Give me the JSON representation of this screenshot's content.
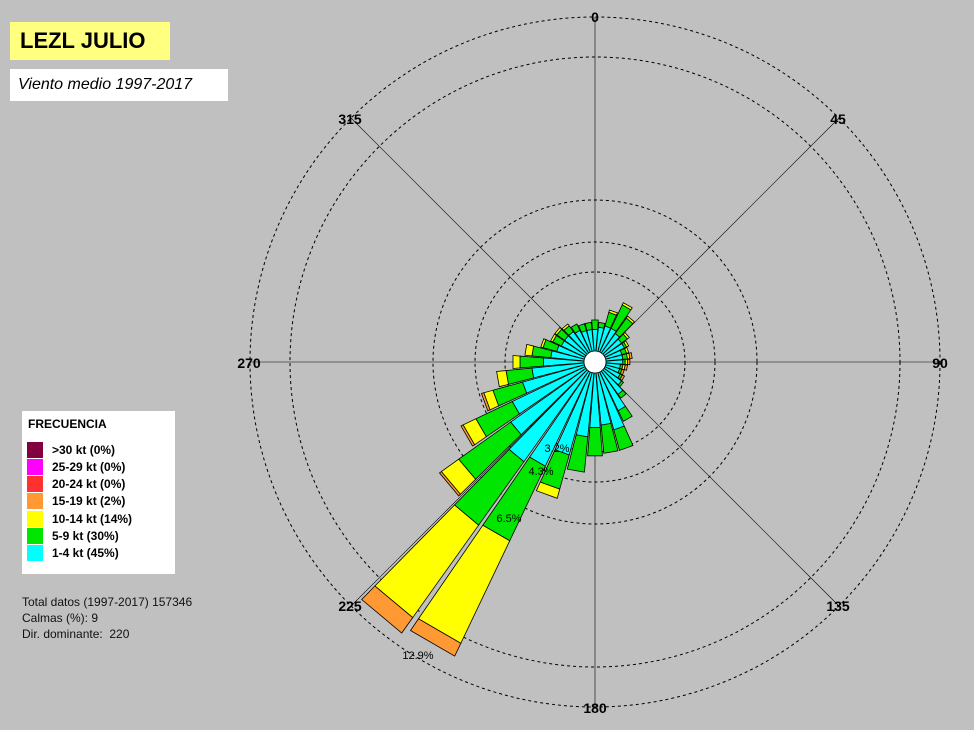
{
  "title": "LEZL JULIO",
  "subtitle": "Viento medio 1997-2017",
  "legend": {
    "title": "FRECUENCIA",
    "items": [
      {
        "label": ">30 kt (0%)",
        "color": "#800040"
      },
      {
        "label": "25-29 kt (0%)",
        "color": "#ff00ff"
      },
      {
        "label": "20-24 kt (0%)",
        "color": "#ff3030"
      },
      {
        "label": "15-19 kt (2%)",
        "color": "#ff9933"
      },
      {
        "label": "10-14 kt (14%)",
        "color": "#ffff00"
      },
      {
        "label": "5-9 kt (30%)",
        "color": "#00e600"
      },
      {
        "label": "1-4 kt (45%)",
        "color": "#00ffff"
      }
    ]
  },
  "info": {
    "total": "Total datos (1997-2017) 157346",
    "calmas": "Calmas (%): 9",
    "dominante": "Dir. dominante:  220"
  },
  "chart_data": {
    "type": "wind-rose",
    "direction_labels": [
      "0",
      "45",
      "90",
      "135",
      "180",
      "225",
      "270",
      "315"
    ],
    "ring_labels": [
      "3.2%",
      "4.3%",
      "6.5%",
      "12.9%"
    ],
    "ring_values": [
      3.2,
      4.3,
      6.5,
      12.9,
      19.3
    ],
    "speed_bins": [
      "1-4 kt",
      "5-9 kt",
      "10-14 kt",
      "15-19 kt"
    ],
    "sectors": [
      {
        "dir": 0,
        "cumulative": [
          1.0,
          1.4,
          1.4,
          1.4
        ]
      },
      {
        "dir": 10,
        "cumulative": [
          1.1,
          1.3,
          1.3,
          1.3
        ]
      },
      {
        "dir": 20,
        "cumulative": [
          1.2,
          1.8,
          1.9,
          1.9
        ]
      },
      {
        "dir": 30,
        "cumulative": [
          1.2,
          2.3,
          2.4,
          2.4
        ]
      },
      {
        "dir": 40,
        "cumulative": [
          1.1,
          1.9,
          2.0,
          2.0
        ]
      },
      {
        "dir": 50,
        "cumulative": [
          1.0,
          1.3,
          1.4,
          1.4
        ]
      },
      {
        "dir": 60,
        "cumulative": [
          1.0,
          1.1,
          1.2,
          1.2
        ]
      },
      {
        "dir": 70,
        "cumulative": [
          0.8,
          1.0,
          1.1,
          1.1
        ]
      },
      {
        "dir": 80,
        "cumulative": [
          0.8,
          1.0,
          1.1,
          1.2
        ]
      },
      {
        "dir": 90,
        "cumulative": [
          0.8,
          0.9,
          1.0,
          1.1
        ]
      },
      {
        "dir": 100,
        "cumulative": [
          0.7,
          0.8,
          0.9,
          1.0
        ]
      },
      {
        "dir": 110,
        "cumulative": [
          0.7,
          0.8,
          0.8,
          0.9
        ]
      },
      {
        "dir": 120,
        "cumulative": [
          0.8,
          0.9,
          0.9,
          1.0
        ]
      },
      {
        "dir": 130,
        "cumulative": [
          1.0,
          1.1,
          1.1,
          1.1
        ]
      },
      {
        "dir": 140,
        "cumulative": [
          1.3,
          1.5,
          1.5,
          1.5
        ]
      },
      {
        "dir": 150,
        "cumulative": [
          1.9,
          2.4,
          2.4,
          2.4
        ]
      },
      {
        "dir": 160,
        "cumulative": [
          2.6,
          3.5,
          3.5,
          3.5
        ]
      },
      {
        "dir": 170,
        "cumulative": [
          2.3,
          3.5,
          3.5,
          3.5
        ]
      },
      {
        "dir": 180,
        "cumulative": [
          2.4,
          3.6,
          3.6,
          3.6
        ]
      },
      {
        "dir": 190,
        "cumulative": [
          2.8,
          4.3,
          4.3,
          4.3
        ]
      },
      {
        "dir": 200,
        "cumulative": [
          3.7,
          5.2,
          5.6,
          5.6
        ]
      },
      {
        "dir": 210,
        "cumulative": [
          4.5,
          8.0,
          12.8,
          13.4
        ]
      },
      {
        "dir": 220,
        "cumulative": [
          4.8,
          8.1,
          12.9,
          13.7
        ]
      },
      {
        "dir": 230,
        "cumulative": [
          4.0,
          6.7,
          7.6,
          7.7
        ]
      },
      {
        "dir": 240,
        "cumulative": [
          3.5,
          5.2,
          5.8,
          5.9
        ]
      },
      {
        "dir": 250,
        "cumulative": [
          2.8,
          4.1,
          4.5,
          4.6
        ]
      },
      {
        "dir": 260,
        "cumulative": [
          2.3,
          3.4,
          3.8,
          3.8
        ]
      },
      {
        "dir": 270,
        "cumulative": [
          1.8,
          2.8,
          3.1,
          3.1
        ]
      },
      {
        "dir": 280,
        "cumulative": [
          1.5,
          2.3,
          2.6,
          2.6
        ]
      },
      {
        "dir": 290,
        "cumulative": [
          1.3,
          1.9,
          2.0,
          2.0
        ]
      },
      {
        "dir": 300,
        "cumulative": [
          1.2,
          1.6,
          1.7,
          1.7
        ]
      },
      {
        "dir": 310,
        "cumulative": [
          1.2,
          1.6,
          1.7,
          1.7
        ]
      },
      {
        "dir": 320,
        "cumulative": [
          1.2,
          1.5,
          1.6,
          1.6
        ]
      },
      {
        "dir": 330,
        "cumulative": [
          1.1,
          1.4,
          1.4,
          1.4
        ]
      },
      {
        "dir": 340,
        "cumulative": [
          1.0,
          1.3,
          1.3,
          1.3
        ]
      },
      {
        "dir": 350,
        "cumulative": [
          1.0,
          1.3,
          1.3,
          1.3
        ]
      }
    ]
  }
}
